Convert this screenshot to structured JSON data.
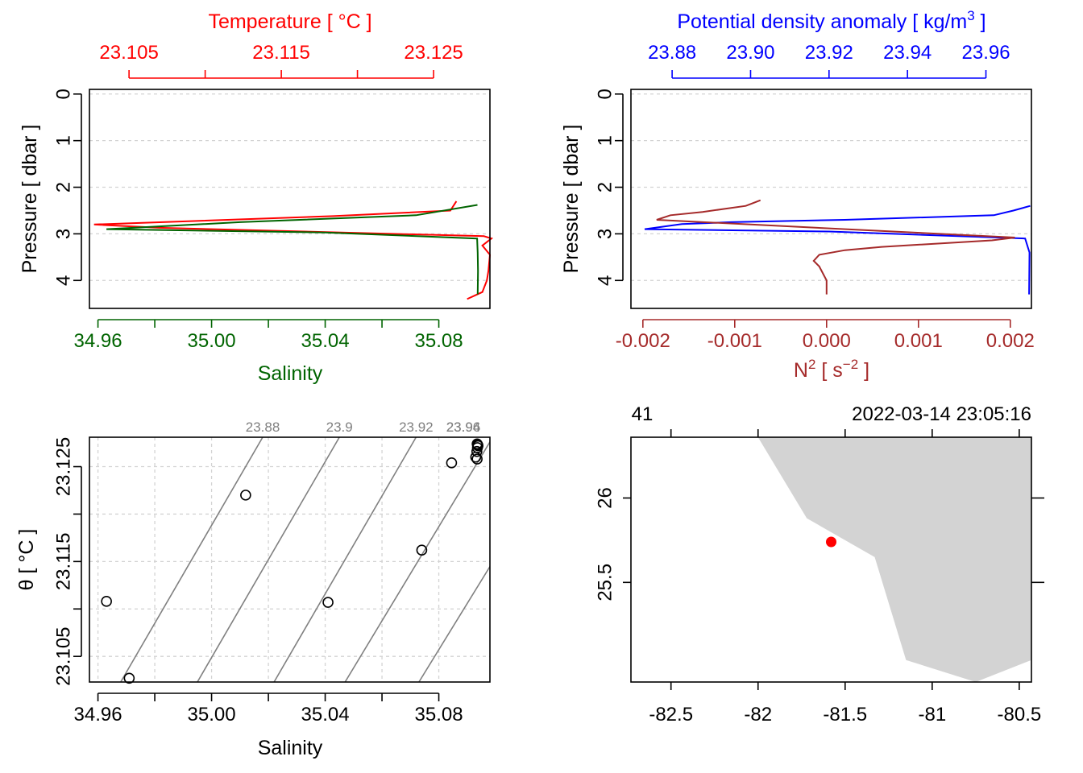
{
  "colors": {
    "temperature": "#ff0000",
    "salinity": "#006400",
    "density": "#0000ff",
    "n2": "#a52a2a",
    "isopycnal": "#808080",
    "land": "#d3d3d3",
    "station": "#ff0000"
  },
  "chart_data": [
    {
      "type": "line",
      "panel": "profile-temperature-salinity",
      "y_axis": {
        "label": "Pressure [ dbar ]",
        "ticks": [
          0,
          1,
          2,
          3,
          4
        ],
        "tick_labels": [
          "0",
          "1",
          "2",
          "3",
          "4"
        ],
        "lim": [
          4.6,
          -0.1
        ],
        "reversed": true
      },
      "top_axis": {
        "label": "Temperature [ °C ]",
        "ticks": [
          23.105,
          23.11,
          23.115,
          23.12,
          23.125
        ],
        "tick_labels": [
          "23.105",
          "",
          "23.115",
          "",
          "23.125"
        ],
        "lim": [
          23.1024,
          23.1287
        ]
      },
      "bottom_axis": {
        "label": "Salinity",
        "ticks": [
          34.96,
          34.98,
          35.0,
          35.02,
          35.04,
          35.06,
          35.08
        ],
        "tick_labels": [
          "34.96",
          "",
          "35.00",
          "",
          "35.04",
          "",
          "35.08"
        ],
        "lim": [
          34.957,
          35.098
        ]
      },
      "grid": true,
      "series": [
        {
          "name": "Temperature",
          "axis": "top",
          "points": [
            [
              23.1265,
              2.3
            ],
            [
              23.1261,
              2.5
            ],
            [
              23.1184,
              2.62
            ],
            [
              23.1027,
              2.8
            ],
            [
              23.107,
              2.87
            ],
            [
              23.1283,
              3.05
            ],
            [
              23.1288,
              3.1
            ],
            [
              23.1282,
              3.25
            ],
            [
              23.1287,
              3.45
            ],
            [
              23.1286,
              3.8
            ],
            [
              23.1285,
              4.0
            ],
            [
              23.1282,
              4.25
            ],
            [
              23.1272,
              4.4
            ]
          ]
        },
        {
          "name": "Salinity",
          "axis": "bottom",
          "points": [
            [
              35.0936,
              2.38
            ],
            [
              35.072,
              2.6
            ],
            [
              35.01,
              2.75
            ],
            [
              34.963,
              2.9
            ],
            [
              35.04,
              2.97
            ],
            [
              35.0935,
              3.1
            ],
            [
              35.0937,
              3.4
            ],
            [
              35.0938,
              3.8
            ],
            [
              35.0937,
              4.3
            ]
          ]
        }
      ]
    },
    {
      "type": "line",
      "panel": "profile-density-n2",
      "y_axis": {
        "label": "Pressure [ dbar ]",
        "ticks": [
          0,
          1,
          2,
          3,
          4
        ],
        "tick_labels": [
          "0",
          "1",
          "2",
          "3",
          "4"
        ],
        "lim": [
          4.6,
          -0.1
        ],
        "reversed": true
      },
      "top_axis": {
        "label": "Potential density anomaly [ kg/m",
        "label_sup": "3",
        "label_end": " ]",
        "ticks": [
          23.88,
          23.9,
          23.92,
          23.94,
          23.96
        ],
        "tick_labels": [
          "23.88",
          "23.90",
          "23.92",
          "23.94",
          "23.96"
        ],
        "lim": [
          23.8695,
          23.9716
        ]
      },
      "bottom_axis": {
        "label": "N",
        "label_sup": "2",
        "label_mid": " [ s",
        "label_sup2": "−2",
        "label_end": " ]",
        "ticks": [
          -0.002,
          -0.001,
          0.0,
          0.001,
          0.002
        ],
        "tick_labels": [
          "-0.002",
          "-0.001",
          "0.000",
          "0.001",
          "0.002"
        ],
        "lim": [
          -0.00213,
          0.00223
        ]
      },
      "grid": true,
      "series": [
        {
          "name": "Potential density anomaly",
          "axis": "top",
          "points": [
            [
              23.9713,
              2.4
            ],
            [
              23.967,
              2.5
            ],
            [
              23.962,
              2.6
            ],
            [
              23.924,
              2.7
            ],
            [
              23.895,
              2.75
            ],
            [
              23.8825,
              2.79
            ],
            [
              23.873,
              2.9
            ],
            [
              23.92,
              2.95
            ],
            [
              23.97,
              3.1
            ],
            [
              23.9711,
              3.4
            ],
            [
              23.971,
              4.3
            ]
          ]
        },
        {
          "name": "N²",
          "axis": "bottom",
          "points": [
            [
              -0.00072,
              2.28
            ],
            [
              -0.00088,
              2.4
            ],
            [
              -0.00135,
              2.53
            ],
            [
              -0.0017,
              2.6
            ],
            [
              -0.00185,
              2.7
            ],
            [
              0.00205,
              3.08
            ],
            [
              0.0018,
              3.14
            ],
            [
              0.0006,
              3.28
            ],
            [
              0.0002,
              3.35
            ],
            [
              -8e-05,
              3.45
            ],
            [
              -0.00014,
              3.58
            ],
            [
              -8e-05,
              3.7
            ],
            [
              0.0,
              4.0
            ],
            [
              0.0,
              4.3
            ]
          ]
        }
      ]
    },
    {
      "type": "scatter",
      "panel": "ts-diagram",
      "x_axis": {
        "label": "Salinity",
        "ticks": [
          34.96,
          34.98,
          35.0,
          35.02,
          35.04,
          35.06,
          35.08
        ],
        "tick_labels": [
          "34.96",
          "",
          "35.00",
          "",
          "35.04",
          "",
          "35.08"
        ],
        "lim": [
          34.957,
          35.098
        ]
      },
      "y_axis": {
        "label": "θ [ °C ]",
        "ticks": [
          23.105,
          23.11,
          23.115,
          23.12,
          23.125
        ],
        "tick_labels": [
          "23.105",
          "",
          "23.115",
          "",
          "23.125"
        ],
        "lim": [
          23.1023,
          23.1281
        ]
      },
      "grid": true,
      "points": [
        [
          34.963,
          23.1108
        ],
        [
          34.971,
          23.1027
        ],
        [
          35.012,
          23.122
        ],
        [
          35.041,
          23.1107
        ],
        [
          35.074,
          23.1162
        ],
        [
          35.0845,
          23.1254
        ],
        [
          35.093,
          23.126
        ],
        [
          35.0935,
          23.1258
        ],
        [
          35.0934,
          23.1266
        ],
        [
          35.0936,
          23.127
        ],
        [
          35.0938,
          23.1272
        ],
        [
          35.0937,
          23.1273
        ],
        [
          35.0935,
          23.1274
        ]
      ],
      "isopycnals": [
        {
          "label": "23.88",
          "x_top": 35.018,
          "x_bottom": 34.968
        },
        {
          "label": "23.9",
          "x_top": 35.045,
          "x_bottom": 34.995
        },
        {
          "label": "23.92",
          "x_top": 35.072,
          "x_bottom": 35.022
        },
        {
          "label": "23.94",
          "x_top": 35.099,
          "x_bottom": 35.047
        },
        {
          "label": "23.96",
          "x_top": 35.126,
          "x_bottom": 35.073
        }
      ]
    },
    {
      "type": "map",
      "panel": "station-map",
      "x_axis": {
        "ticks": [
          -82.5,
          -82,
          -81.5,
          -81,
          -80.5
        ],
        "tick_labels": [
          "-82.5",
          "-82",
          "-81.5",
          "-81",
          "-80.5"
        ],
        "lim": [
          -82.73,
          -80.43
        ]
      },
      "y_axis": {
        "ticks": [
          25.5,
          26
        ],
        "tick_labels": [
          "25.5",
          "26"
        ],
        "lim": [
          24.91,
          26.36
        ]
      },
      "top_labels": {
        "station": "41",
        "time": "2022-03-14 23:05:16"
      },
      "land_polygon": [
        [
          -82.0,
          26.36
        ],
        [
          -81.72,
          25.88
        ],
        [
          -81.33,
          25.65
        ],
        [
          -81.15,
          25.04
        ],
        [
          -80.75,
          24.91
        ],
        [
          -80.43,
          25.04
        ],
        [
          -80.43,
          26.36
        ]
      ],
      "station": {
        "lon": -81.58,
        "lat": 25.74
      }
    }
  ]
}
